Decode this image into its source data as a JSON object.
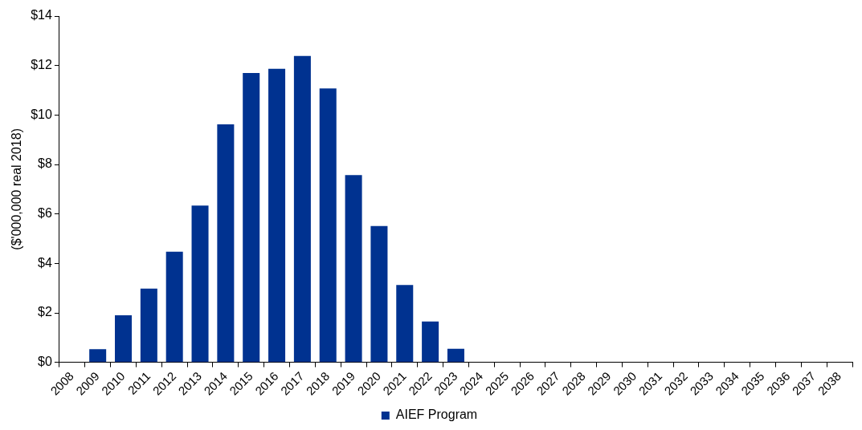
{
  "chart_data": {
    "type": "bar",
    "ylabel": "($'000,000 real 2018)",
    "categories": [
      "2008",
      "2009",
      "2010",
      "2011",
      "2012",
      "2013",
      "2014",
      "2015",
      "2016",
      "2017",
      "2018",
      "2019",
      "2020",
      "2021",
      "2022",
      "2023",
      "2024",
      "2025",
      "2026",
      "2027",
      "2028",
      "2029",
      "2030",
      "2031",
      "2032",
      "2033",
      "2034",
      "2035",
      "2036",
      "2037",
      "2038"
    ],
    "series": [
      {
        "name": "AIEF Program",
        "color": "#003290",
        "values": [
          0,
          0.53,
          1.9,
          2.98,
          4.47,
          6.34,
          9.62,
          11.7,
          11.87,
          12.39,
          11.07,
          7.57,
          5.51,
          3.13,
          1.65,
          0.55,
          0,
          0,
          0,
          0,
          0,
          0,
          0,
          0,
          0,
          0,
          0,
          0,
          0,
          0,
          0
        ]
      }
    ],
    "ylim": [
      0,
      14
    ],
    "yticks": [
      {
        "value": 0,
        "label": "$0"
      },
      {
        "value": 2,
        "label": "$2"
      },
      {
        "value": 4,
        "label": "$4"
      },
      {
        "value": 6,
        "label": "$6"
      },
      {
        "value": 8,
        "label": "$8"
      },
      {
        "value": 10,
        "label": "$10"
      },
      {
        "value": 12,
        "label": "$12"
      },
      {
        "value": 14,
        "label": "$14"
      }
    ],
    "grid": false,
    "legend": "bottom"
  }
}
